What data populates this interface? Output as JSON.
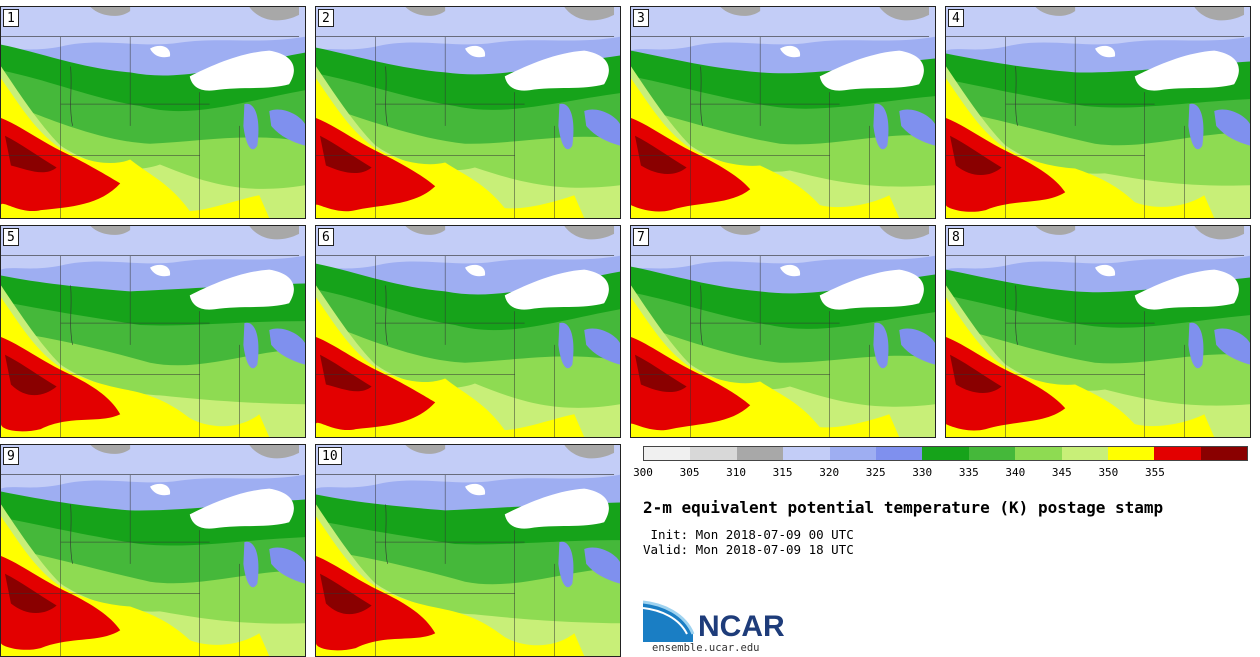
{
  "panels": [
    {
      "label": "1"
    },
    {
      "label": "2"
    },
    {
      "label": "3"
    },
    {
      "label": "4"
    },
    {
      "label": "5"
    },
    {
      "label": "6"
    },
    {
      "label": "7"
    },
    {
      "label": "8"
    },
    {
      "label": "9"
    },
    {
      "label": "10"
    }
  ],
  "colorbar": {
    "ticks": [
      "300",
      "305",
      "310",
      "315",
      "320",
      "325",
      "330",
      "335",
      "340",
      "345",
      "350",
      "355"
    ],
    "colors": [
      "#f0f0f0",
      "#d8d8d8",
      "#a8a8a8",
      "#c3cdf7",
      "#9eaef2",
      "#7f90ee",
      "#16a31a",
      "#45b83a",
      "#8edb52",
      "#c8ef78",
      "#ffff00",
      "#e30000",
      "#8a0000"
    ]
  },
  "title": "2-m equivalent potential temperature (K) postage stamp",
  "init": " Init: Mon 2018-07-09 00 UTC",
  "valid": "Valid: Mon 2018-07-09 18 UTC",
  "logo": {
    "name": "NCAR",
    "url": "ensemble.ucar.edu"
  }
}
